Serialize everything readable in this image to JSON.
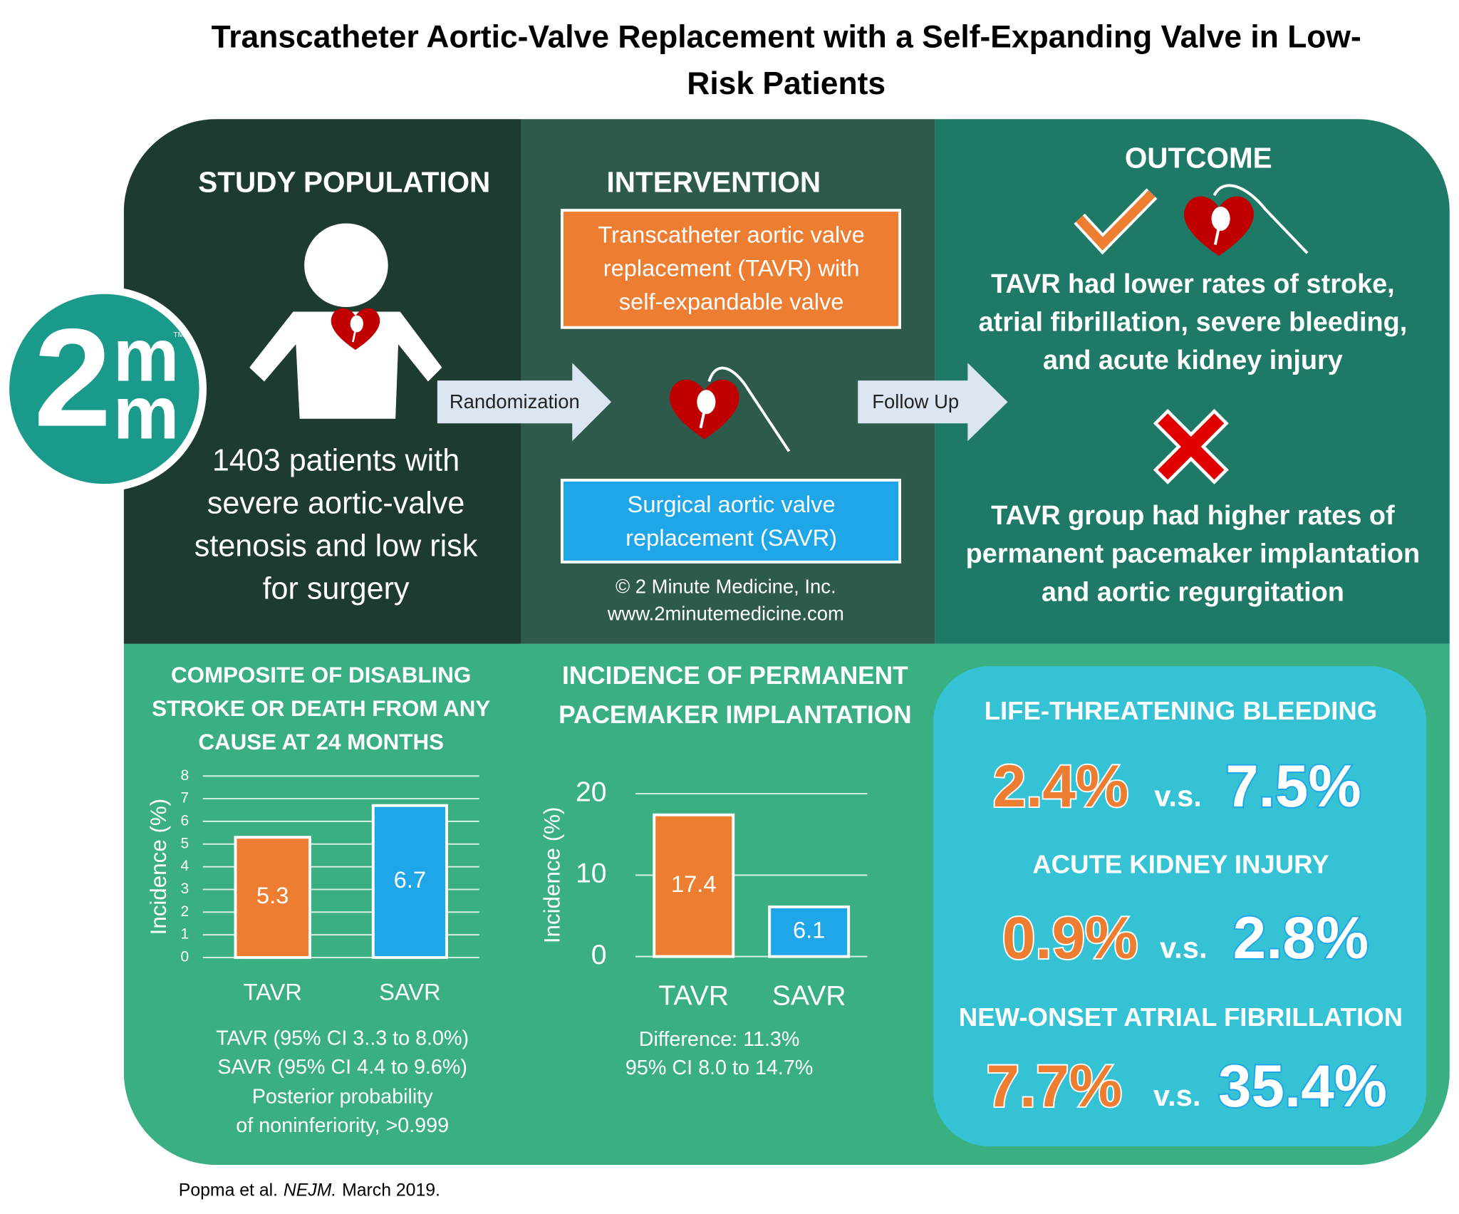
{
  "header": {
    "title_lines": [
      "Transcatheter Aortic-Valve Replacement with a Self-Expanding Valve in Low-",
      "Risk Patients"
    ]
  },
  "logo": {
    "digit": "2",
    "letter_top": "m",
    "letter_bottom": "m",
    "trademark": "TM"
  },
  "study_population": {
    "heading": "STUDY POPULATION",
    "text_lines": [
      "1403 patients with",
      "severe aortic-valve",
      "stenosis and low risk",
      "for surgery"
    ]
  },
  "intervention": {
    "heading": "INTERVENTION",
    "tavr_lines": [
      "Transcatheter aortic valve",
      "replacement (TAVR) with",
      "self-expandable valve"
    ],
    "savr_lines": [
      "Surgical aortic valve",
      "replacement (SAVR)"
    ],
    "randomization": "Randomization",
    "follow_up": "Follow Up",
    "copyright_lines": [
      "© 2 Minute Medicine, Inc.",
      "www.2minutemedicine.com"
    ]
  },
  "outcome": {
    "heading": "OUTCOME",
    "positive_lines": [
      "TAVR had lower rates of stroke,",
      "atrial fibrillation, severe bleeding,",
      "and acute kidney injury"
    ],
    "negative_lines": [
      "TAVR group had higher rates of",
      "permanent pacemaker implantation",
      "and aortic regurgitation"
    ]
  },
  "chart_data": [
    {
      "type": "bar",
      "title_lines": [
        "COMPOSITE OF DISABLING",
        "STROKE OR DEATH FROM ANY",
        "CAUSE AT 24 MONTHS"
      ],
      "y_label": "Incidence (%)",
      "categories": [
        "TAVR",
        "SAVR"
      ],
      "values": [
        5.3,
        6.7
      ],
      "colors": [
        "#ed7d31",
        "#1ea6e8"
      ],
      "ylim": [
        0,
        8
      ],
      "yticks": [
        0,
        1,
        2,
        3,
        4,
        5,
        6,
        7,
        8
      ],
      "grid": true,
      "notes_lines": [
        "TAVR (95% CI 3..3 to 8.0%)",
        "SAVR (95% CI 4.4 to 9.6%)",
        "Posterior probability",
        "of noninferiority, >0.999"
      ]
    },
    {
      "type": "bar",
      "title_lines": [
        "INCIDENCE OF PERMANENT",
        "PACEMAKER IMPLANTATION"
      ],
      "y_label": "Incidence (%)",
      "categories": [
        "TAVR",
        "SAVR"
      ],
      "values": [
        17.4,
        6.1
      ],
      "colors": [
        "#ed7d31",
        "#1ea6e8"
      ],
      "ylim": [
        0,
        20
      ],
      "yticks": [
        0,
        10,
        20
      ],
      "grid": true,
      "notes_lines": [
        "Difference: 11.3%",
        "95% CI 8.0 to 14.7%"
      ]
    }
  ],
  "stats": [
    {
      "heading": "LIFE-THREATENING BLEEDING",
      "tavr": "2.4%",
      "vs": "v.s.",
      "savr": "7.5%"
    },
    {
      "heading": "ACUTE KIDNEY INJURY",
      "tavr": "0.9%",
      "vs": "v.s.",
      "savr": "2.8%"
    },
    {
      "heading": "NEW-ONSET ATRIAL FIBRILLATION",
      "tavr": "7.7%",
      "vs": "v.s.",
      "savr": "35.4%"
    }
  ],
  "citation": {
    "authors": "Popma et al.",
    "journal": "NEJM.",
    "date": "March 2019."
  }
}
